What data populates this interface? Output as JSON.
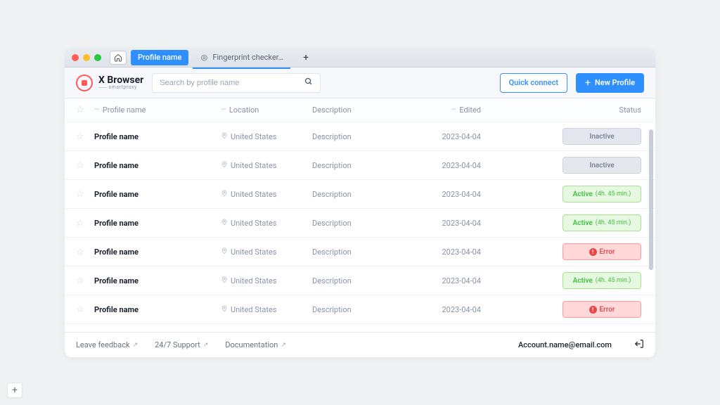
{
  "titlebar": {
    "tabs": [
      {
        "label": "Profile name",
        "active": true
      },
      {
        "label": "Fingerprint checker…",
        "active": false
      }
    ]
  },
  "brand": {
    "name": "X Browser",
    "sub": "⸺ smartproxy"
  },
  "search": {
    "placeholder": "Search by profile name"
  },
  "actions": {
    "quick_connect": "Quick connect",
    "new_profile": "New Profile"
  },
  "columns": {
    "name": "Profile name",
    "location": "Location",
    "description": "Description",
    "edited": "Edited",
    "status": "Status"
  },
  "status_labels": {
    "inactive": "Inactive",
    "active": "Active",
    "active_duration": "(4h. 45 min.)",
    "error": "Error"
  },
  "rows": [
    {
      "name": "Profile name",
      "location": "United States",
      "description": "Description",
      "edited": "2023-04-04",
      "status": "inactive"
    },
    {
      "name": "Profile name",
      "location": "United States",
      "description": "Description",
      "edited": "2023-04-04",
      "status": "inactive"
    },
    {
      "name": "Profile name",
      "location": "United States",
      "description": "Description",
      "edited": "2023-04-04",
      "status": "active"
    },
    {
      "name": "Profile name",
      "location": "United States",
      "description": "Description",
      "edited": "2023-04-04",
      "status": "active"
    },
    {
      "name": "Profile name",
      "location": "United States",
      "description": "Description",
      "edited": "2023-04-04",
      "status": "error"
    },
    {
      "name": "Profile name",
      "location": "United States",
      "description": "Description",
      "edited": "2023-04-04",
      "status": "active"
    },
    {
      "name": "Profile name",
      "location": "United States",
      "description": "Description",
      "edited": "2023-04-04",
      "status": "error"
    }
  ],
  "footer": {
    "feedback": "Leave feedback",
    "support": "24/7 Support",
    "docs": "Documentation",
    "account": "Account.name@email.com"
  },
  "colors": {
    "primary": "#2f8fff",
    "accent": "#ff5a5a",
    "inactive_bg": "#e4e7ed",
    "active_bg": "#e7f8e1",
    "active_fg": "#3fbf3f",
    "error_bg": "#ffd9d9",
    "error_fg": "#e84848"
  }
}
